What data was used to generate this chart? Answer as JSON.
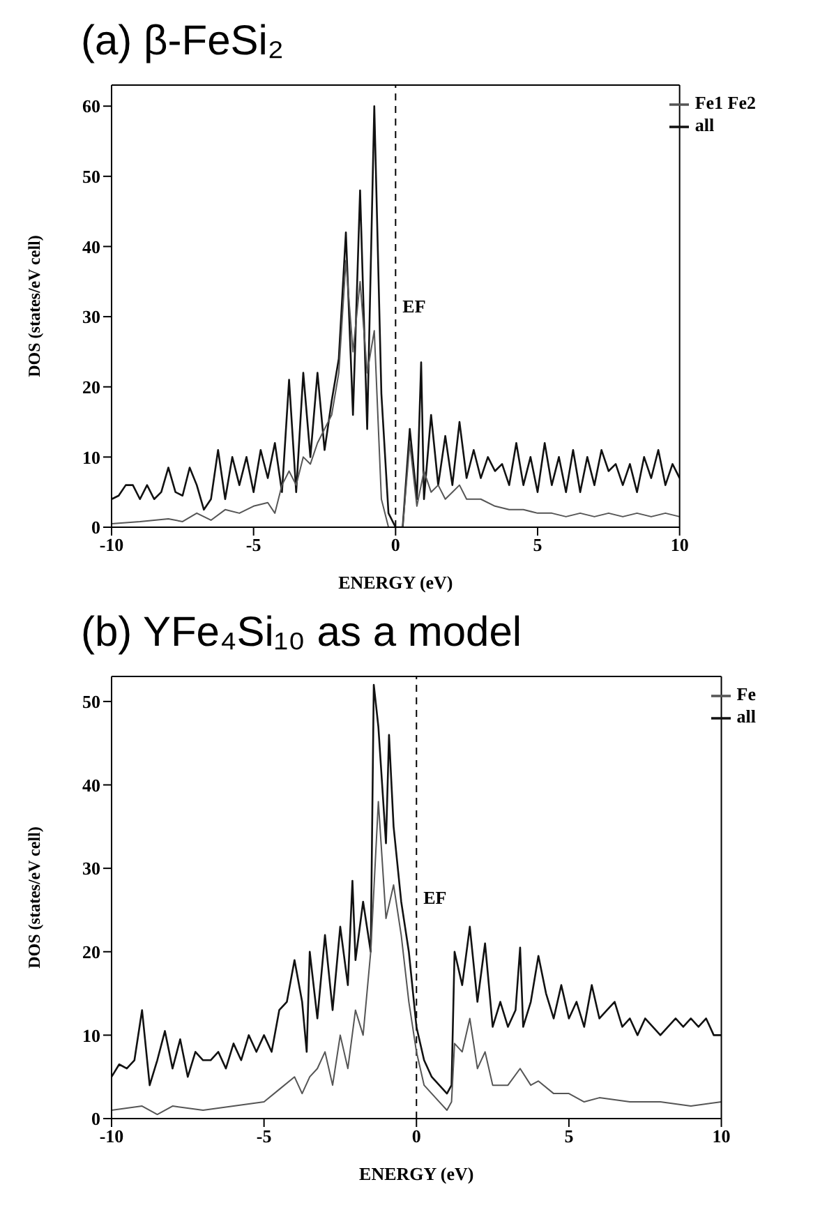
{
  "chart_data": [
    {
      "type": "line",
      "title": "(a) β-FeSi₂",
      "xlabel": "ENERGY (eV)",
      "ylabel": "DOS (states/eV cell)",
      "xlim": [
        -10,
        10
      ],
      "ylim": [
        0,
        63
      ],
      "xticks": [
        -10,
        -5,
        0,
        5,
        10
      ],
      "yticks": [
        0,
        10,
        20,
        30,
        40,
        50,
        60
      ],
      "legend": "top right",
      "ref_lines": [
        {
          "axis": "x",
          "value": 0,
          "label": "EF",
          "line_style": "dashed"
        }
      ],
      "series": [
        {
          "name": "all",
          "color": "#111111",
          "x": [
            -10,
            -9.75,
            -9.5,
            -9.25,
            -9,
            -8.75,
            -8.5,
            -8.25,
            -8,
            -7.75,
            -7.5,
            -7.25,
            -7,
            -6.75,
            -6.5,
            -6.25,
            -6,
            -5.75,
            -5.5,
            -5.25,
            -5,
            -4.75,
            -4.5,
            -4.25,
            -4,
            -3.75,
            -3.5,
            -3.25,
            -3,
            -2.75,
            -2.5,
            -2.25,
            -2,
            -1.75,
            -1.5,
            -1.25,
            -1,
            -0.75,
            -0.5,
            -0.25,
            0,
            0.25,
            0.5,
            0.75,
            0.9,
            1,
            1.25,
            1.5,
            1.75,
            2,
            2.25,
            2.5,
            2.75,
            3,
            3.25,
            3.5,
            3.75,
            4,
            4.25,
            4.5,
            4.75,
            5,
            5.25,
            5.5,
            5.75,
            6,
            6.25,
            6.5,
            6.75,
            7,
            7.25,
            7.5,
            7.75,
            8,
            8.25,
            8.5,
            8.75,
            9,
            9.25,
            9.5,
            9.75,
            10
          ],
          "values": [
            4,
            4.5,
            6,
            6,
            4,
            6,
            4,
            5,
            8.5,
            5,
            4.5,
            8.5,
            6,
            2.5,
            4,
            11,
            4,
            10,
            6,
            10,
            5,
            11,
            7,
            12,
            5,
            21,
            5,
            22,
            10,
            22,
            11,
            18,
            24,
            42,
            16,
            48,
            14,
            60,
            19,
            2,
            0,
            0,
            14,
            4,
            23.5,
            4,
            16,
            6,
            13,
            6,
            15,
            7,
            11,
            7,
            10,
            8,
            9,
            6,
            12,
            6,
            10,
            5,
            12,
            6,
            10,
            5,
            11,
            5,
            10,
            6,
            11,
            8,
            9,
            6,
            9,
            5,
            10,
            7,
            11,
            6,
            9,
            7
          ]
        },
        {
          "name": "Fe1 Fe2",
          "color": "#555555",
          "x": [
            -10,
            -9,
            -8,
            -7.5,
            -7,
            -6.5,
            -6,
            -5.5,
            -5,
            -4.5,
            -4.25,
            -4,
            -3.75,
            -3.5,
            -3.25,
            -3,
            -2.75,
            -2.5,
            -2.25,
            -2,
            -1.75,
            -1.5,
            -1.25,
            -1,
            -0.75,
            -0.5,
            -0.25,
            0,
            0.25,
            0.5,
            0.75,
            1,
            1.25,
            1.5,
            1.75,
            2,
            2.25,
            2.5,
            3,
            3.5,
            4,
            4.5,
            5,
            5.5,
            6,
            6.5,
            7,
            7.5,
            8,
            8.5,
            9,
            9.5,
            10
          ],
          "values": [
            0.5,
            0.8,
            1.2,
            0.8,
            2,
            1,
            2.5,
            2,
            3,
            3.5,
            2,
            6,
            8,
            6,
            10,
            9,
            12,
            14,
            16,
            22,
            38,
            25,
            35,
            22,
            28,
            4,
            0,
            0,
            0,
            12,
            3,
            8,
            5,
            6,
            4,
            5,
            6,
            4,
            4,
            3,
            2.5,
            2.5,
            2,
            2,
            1.5,
            2,
            1.5,
            2,
            1.5,
            2,
            1.5,
            2,
            1.5
          ]
        }
      ]
    },
    {
      "type": "line",
      "title": "(b) YFe₄Si₁₀ as a model",
      "xlabel": "ENERGY (eV)",
      "ylabel": "DOS (states/eV cell)",
      "xlim": [
        -10,
        10
      ],
      "ylim": [
        0,
        53
      ],
      "xticks": [
        -10,
        -5,
        0,
        5,
        10
      ],
      "yticks": [
        0,
        10,
        20,
        30,
        40,
        50
      ],
      "legend": "top right",
      "ref_lines": [
        {
          "axis": "x",
          "value": 0,
          "label": "EF",
          "line_style": "dashed"
        }
      ],
      "series": [
        {
          "name": "all",
          "color": "#111111",
          "x": [
            -10,
            -9.75,
            -9.5,
            -9.25,
            -9,
            -8.75,
            -8.5,
            -8.25,
            -8,
            -7.75,
            -7.5,
            -7.25,
            -7,
            -6.75,
            -6.5,
            -6.25,
            -6,
            -5.75,
            -5.5,
            -5.25,
            -5,
            -4.75,
            -4.5,
            -4.25,
            -4,
            -3.75,
            -3.6,
            -3.5,
            -3.25,
            -3,
            -2.75,
            -2.5,
            -2.25,
            -2.1,
            -2,
            -1.75,
            -1.5,
            -1.4,
            -1.25,
            -1,
            -0.9,
            -0.75,
            -0.5,
            -0.25,
            0,
            0.25,
            0.5,
            0.75,
            1,
            1.15,
            1.25,
            1.5,
            1.75,
            2,
            2.25,
            2.5,
            2.75,
            3,
            3.25,
            3.4,
            3.5,
            3.75,
            4,
            4.25,
            4.5,
            4.75,
            5,
            5.25,
            5.5,
            5.75,
            6,
            6.25,
            6.5,
            6.75,
            7,
            7.25,
            7.5,
            7.75,
            8,
            8.25,
            8.5,
            8.75,
            9,
            9.25,
            9.5,
            9.75,
            10
          ],
          "values": [
            5,
            6.5,
            6,
            7,
            13,
            4,
            7,
            10.5,
            6,
            9.5,
            5,
            8,
            7,
            7,
            8,
            6,
            9,
            7,
            10,
            8,
            10,
            8,
            13,
            14,
            19,
            14,
            8,
            20,
            12,
            22,
            13,
            23,
            16,
            28.5,
            19,
            26,
            20,
            52,
            47,
            33,
            46,
            35,
            26,
            20,
            11,
            7,
            5,
            4,
            3,
            4,
            20,
            16,
            23,
            14,
            21,
            11,
            14,
            11,
            13,
            20.5,
            11,
            14,
            19.5,
            15,
            12,
            16,
            12,
            14,
            11,
            16,
            12,
            13,
            14,
            11,
            12,
            10,
            12,
            11,
            10,
            11,
            12,
            11,
            12,
            11,
            12,
            10,
            10
          ]
        },
        {
          "name": "Fe",
          "color": "#555555",
          "x": [
            -10,
            -9,
            -8.5,
            -8,
            -7,
            -6,
            -5,
            -4.5,
            -4,
            -3.75,
            -3.5,
            -3.25,
            -3,
            -2.75,
            -2.5,
            -2.25,
            -2,
            -1.75,
            -1.5,
            -1.25,
            -1,
            -0.75,
            -0.5,
            -0.25,
            0,
            0.25,
            0.5,
            0.75,
            1,
            1.15,
            1.25,
            1.5,
            1.75,
            2,
            2.25,
            2.5,
            3,
            3.4,
            3.75,
            4,
            4.5,
            5,
            5.5,
            6,
            7,
            8,
            9,
            10
          ],
          "values": [
            1,
            1.5,
            0.5,
            1.5,
            1,
            1.5,
            2,
            3.5,
            5,
            3,
            5,
            6,
            8,
            4,
            10,
            6,
            13,
            10,
            20,
            38,
            24,
            28,
            22,
            14,
            8,
            4,
            3,
            2,
            1,
            2,
            9,
            8,
            12,
            6,
            8,
            4,
            4,
            6,
            4,
            4.5,
            3,
            3,
            2,
            2.5,
            2,
            2,
            1.5,
            2
          ]
        }
      ]
    }
  ]
}
